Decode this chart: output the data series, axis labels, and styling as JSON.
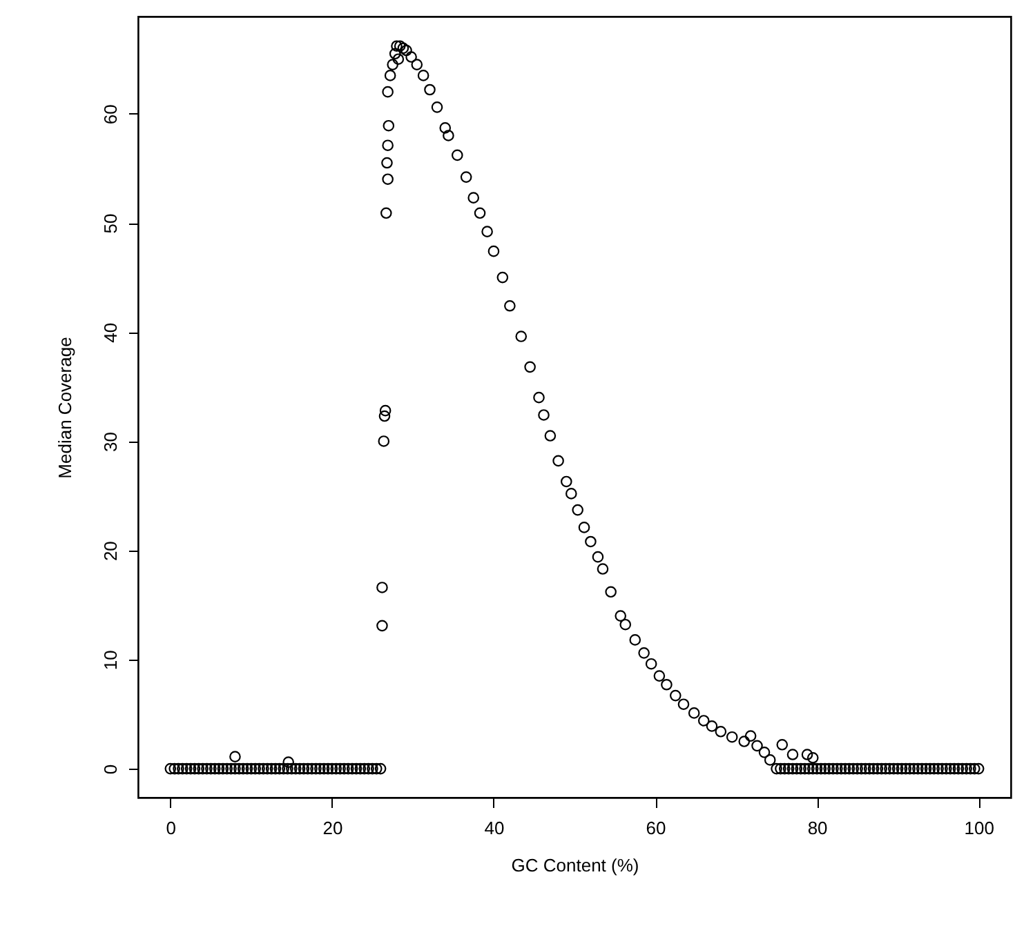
{
  "chart_data": {
    "type": "scatter",
    "xlabel": "GC Content (%)",
    "ylabel": "Median Coverage",
    "marker": "circle",
    "grid": false,
    "xlim": [
      -4,
      104
    ],
    "ylim": [
      -2.65,
      68.9
    ],
    "xticks": [
      0,
      20,
      40,
      60,
      80,
      100
    ],
    "yticks": [
      0,
      10,
      20,
      30,
      40,
      50,
      60
    ],
    "series": [
      {
        "color": "#000000",
        "x": [
          0,
          0.5,
          1,
          1.5,
          2,
          2.5,
          3,
          3.5,
          4,
          4.5,
          5,
          5.5,
          6,
          6.5,
          7,
          7.5,
          8,
          8.5,
          9,
          9.5,
          10,
          10.5,
          11,
          11.5,
          12,
          12.5,
          13,
          13.5,
          14,
          14.5,
          15,
          15.5,
          16,
          16.5,
          17,
          17.5,
          18,
          18.5,
          19,
          19.5,
          20,
          20.5,
          21,
          21.5,
          22,
          22.5,
          23,
          23.5,
          24,
          24.5,
          25,
          25.5,
          26,
          8,
          14.6,
          26.2,
          26.2,
          26.4,
          26.5,
          26.6,
          26.7,
          26.9,
          26.8,
          26.9,
          27,
          26.9,
          27.2,
          27.5,
          27.8,
          28,
          28.2,
          28.4,
          28.8,
          29.2,
          29.8,
          30.5,
          31.3,
          32.1,
          33,
          34,
          34.4,
          35.5,
          36.6,
          37.5,
          38.3,
          39.2,
          40,
          41.1,
          42,
          43.4,
          44.5,
          45.6,
          46.2,
          47,
          48,
          49,
          49.6,
          50.4,
          51.2,
          52,
          52.9,
          53.5,
          54.5,
          55.7,
          56.3,
          57.5,
          58.6,
          59.5,
          60.5,
          61.4,
          62.5,
          63.5,
          64.8,
          66,
          67,
          68.1,
          69.5,
          71,
          72.6,
          73.5,
          74.2,
          71.8,
          75.7,
          77,
          78.8,
          79.5,
          75,
          75.5,
          76,
          76.5,
          77,
          77.5,
          78,
          78.5,
          79,
          79.5,
          80,
          80.5,
          81,
          81.5,
          82,
          82.5,
          83,
          83.5,
          84,
          84.5,
          85,
          85.5,
          86,
          86.5,
          87,
          87.5,
          88,
          88.5,
          89,
          89.5,
          90,
          90.5,
          91,
          91.5,
          92,
          92.5,
          93,
          93.5,
          94,
          94.5,
          95,
          95.5,
          96,
          96.5,
          97,
          97.5,
          98,
          98.5,
          99,
          99.5,
          100
        ],
        "values": [
          0,
          0,
          0,
          0,
          0,
          0,
          0,
          0,
          0,
          0,
          0,
          0,
          0,
          0,
          0,
          0,
          0,
          0,
          0,
          0,
          0,
          0,
          0,
          0,
          0,
          0,
          0,
          0,
          0,
          0,
          0,
          0,
          0,
          0,
          0,
          0,
          0,
          0,
          0,
          0,
          0,
          0,
          0,
          0,
          0,
          0,
          0,
          0,
          0,
          0,
          0,
          0,
          0,
          1.1,
          0.6,
          13.1,
          16.6,
          30,
          32.3,
          32.8,
          50.9,
          54,
          55.5,
          57.1,
          58.9,
          62,
          63.5,
          64.5,
          65.5,
          66.2,
          65,
          66.2,
          66,
          65.8,
          65.2,
          64.5,
          63.5,
          62.2,
          60.6,
          58.7,
          58,
          56.2,
          54.2,
          52.3,
          50.9,
          49.2,
          47.4,
          45,
          42.4,
          39.6,
          36.8,
          34,
          32.4,
          30.5,
          28.2,
          26.3,
          25.2,
          23.7,
          22.1,
          20.8,
          19.4,
          18.3,
          16.2,
          14,
          13.2,
          11.8,
          10.6,
          9.6,
          8.5,
          7.7,
          6.7,
          5.9,
          5.1,
          4.4,
          3.9,
          3.4,
          2.9,
          2.5,
          2.1,
          1.5,
          0.8,
          3,
          2.2,
          1.3,
          1.3,
          1,
          0,
          0,
          0,
          0,
          0,
          0,
          0,
          0,
          0,
          0,
          0,
          0,
          0,
          0,
          0,
          0,
          0,
          0,
          0,
          0,
          0,
          0,
          0,
          0,
          0,
          0,
          0,
          0,
          0,
          0,
          0,
          0,
          0,
          0,
          0,
          0,
          0,
          0,
          0,
          0,
          0,
          0,
          0,
          0,
          0,
          0,
          0,
          0,
          0,
          0,
          0
        ]
      }
    ]
  }
}
